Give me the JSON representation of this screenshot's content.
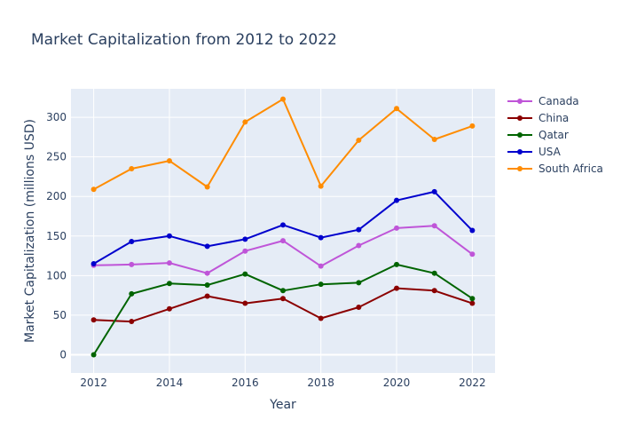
{
  "chart_data": {
    "type": "line",
    "title": "Market Capitalization from 2012 to 2022",
    "xlabel": "Year",
    "ylabel": "Market Capitalization (millions USD)",
    "x": [
      2012,
      2013,
      2014,
      2015,
      2016,
      2017,
      2018,
      2019,
      2020,
      2021,
      2022
    ],
    "xlim": [
      2011.4,
      2022.6
    ],
    "ylim": [
      -23,
      336
    ],
    "x_ticks": [
      "2012",
      "2014",
      "2016",
      "2018",
      "2020",
      "2022"
    ],
    "y_ticks": [
      "0",
      "50",
      "100",
      "150",
      "200",
      "250",
      "300"
    ],
    "grid": true,
    "legend_position": "top-right",
    "plot_background": "#e5ecf6",
    "series": [
      {
        "name": "Canada",
        "color": "#bf55d8",
        "values": [
          113,
          114,
          116,
          103,
          131,
          144,
          112,
          138,
          160,
          163,
          127
        ]
      },
      {
        "name": "China",
        "color": "#8b0000",
        "values": [
          44,
          42,
          58,
          74,
          65,
          71,
          46,
          60,
          84,
          81,
          65
        ]
      },
      {
        "name": "Qatar",
        "color": "#006400",
        "values": [
          0,
          77,
          90,
          88,
          102,
          81,
          89,
          91,
          114,
          103,
          71
        ]
      },
      {
        "name": "USA",
        "color": "#0000cd",
        "values": [
          115,
          143,
          150,
          137,
          146,
          164,
          148,
          158,
          195,
          206,
          157
        ]
      },
      {
        "name": "South Africa",
        "color": "#ff8c00",
        "values": [
          209,
          235,
          245,
          212,
          294,
          323,
          213,
          271,
          311,
          272,
          289
        ]
      }
    ]
  }
}
